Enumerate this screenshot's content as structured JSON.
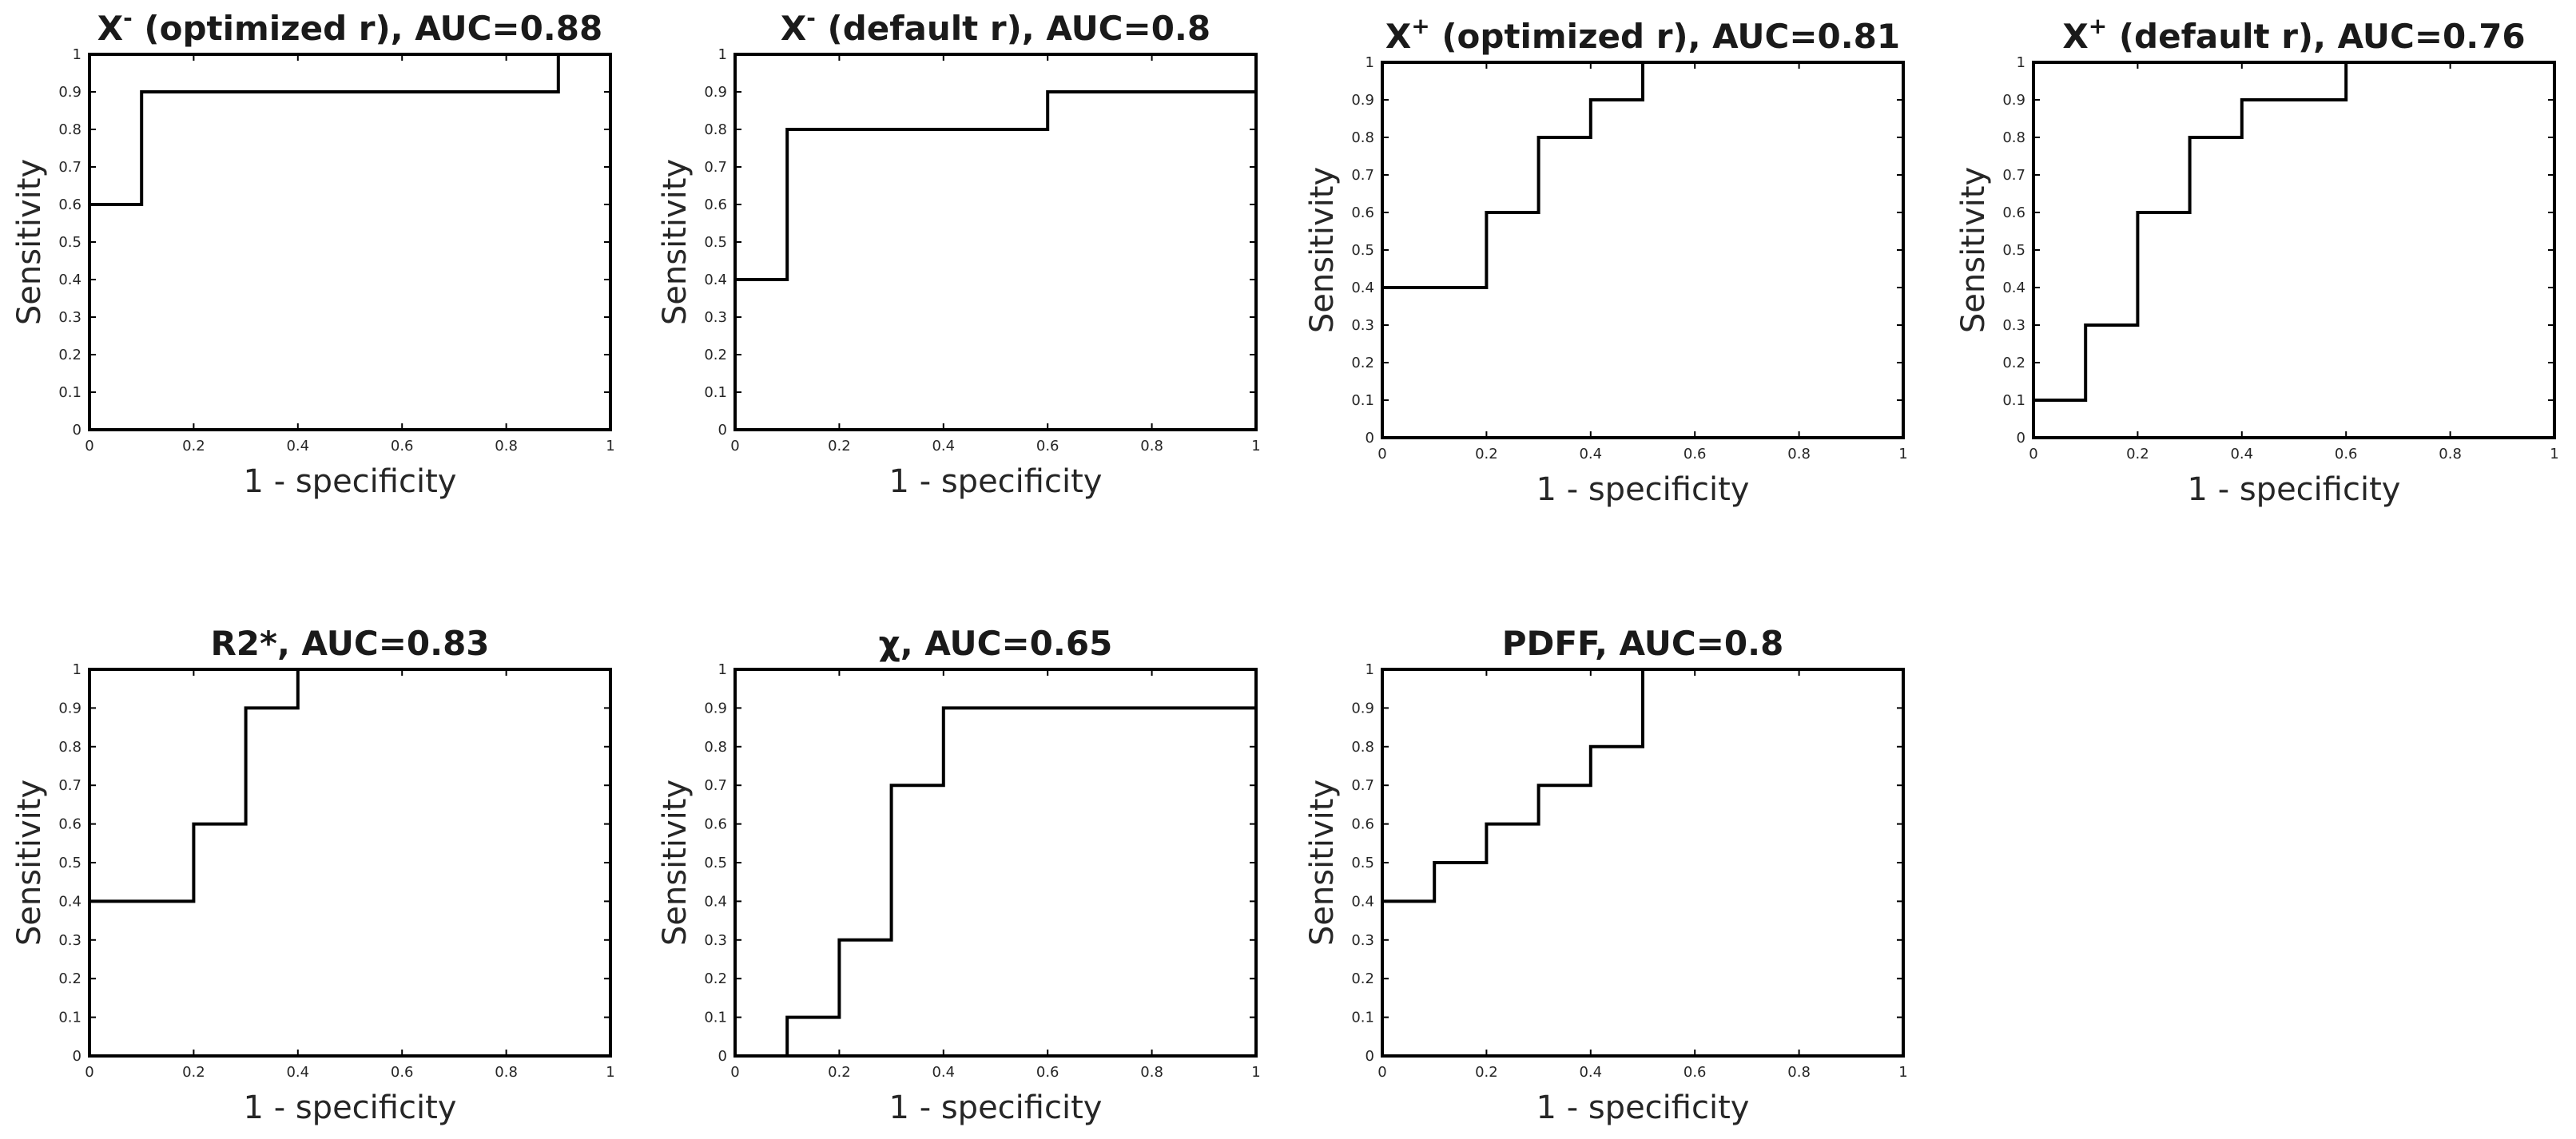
{
  "chart_data": [
    {
      "type": "line",
      "title": "X- (optimized r), AUC=0.88",
      "title_parts": {
        "base": "X",
        "sup": "-",
        "rest": " (optimized r), AUC=0.88"
      },
      "xlabel": "1 - specificity",
      "ylabel": "Sensitivity",
      "xlim": [
        0,
        1
      ],
      "ylim": [
        0,
        1
      ],
      "grid": false,
      "x_ticks": [
        "0",
        "0.2",
        "0.4",
        "0.6",
        "0.8",
        "1"
      ],
      "y_ticks": [
        "0",
        "0.1",
        "0.2",
        "0.3",
        "0.4",
        "0.5",
        "0.6",
        "0.7",
        "0.8",
        "0.9",
        "1"
      ],
      "series": [
        {
          "x": [
            0,
            0,
            0.1,
            0.1,
            0.9,
            0.9,
            1
          ],
          "y": [
            0,
            0.6,
            0.6,
            0.9,
            0.9,
            1,
            1
          ]
        }
      ]
    },
    {
      "type": "line",
      "title": "X- (default r), AUC=0.8",
      "title_parts": {
        "base": "X",
        "sup": "-",
        "rest": " (default r), AUC=0.8"
      },
      "xlabel": "1 - specificity",
      "ylabel": "Sensitivity",
      "xlim": [
        0,
        1
      ],
      "ylim": [
        0,
        1
      ],
      "grid": false,
      "x_ticks": [
        "0",
        "0.2",
        "0.4",
        "0.6",
        "0.8",
        "1"
      ],
      "y_ticks": [
        "0",
        "0.1",
        "0.2",
        "0.3",
        "0.4",
        "0.5",
        "0.6",
        "0.7",
        "0.8",
        "0.9",
        "1"
      ],
      "series": [
        {
          "x": [
            0,
            0,
            0.1,
            0.1,
            0.6,
            0.6,
            1,
            1
          ],
          "y": [
            0,
            0.4,
            0.4,
            0.8,
            0.8,
            0.9,
            0.9,
            1
          ]
        }
      ]
    },
    {
      "type": "line",
      "title": "X+ (optimized r), AUC=0.81",
      "title_parts": {
        "base": "X",
        "sup": "+",
        "rest": " (optimized r), AUC=0.81"
      },
      "xlabel": "1 - specificity",
      "ylabel": "Sensitivity",
      "xlim": [
        0,
        1
      ],
      "ylim": [
        0,
        1
      ],
      "grid": false,
      "x_ticks": [
        "0",
        "0.2",
        "0.4",
        "0.6",
        "0.8",
        "1"
      ],
      "y_ticks": [
        "0",
        "0.1",
        "0.2",
        "0.3",
        "0.4",
        "0.5",
        "0.6",
        "0.7",
        "0.8",
        "0.9",
        "1"
      ],
      "series": [
        {
          "x": [
            0,
            0,
            0.2,
            0.2,
            0.3,
            0.3,
            0.4,
            0.4,
            0.5,
            0.5,
            1
          ],
          "y": [
            0,
            0.4,
            0.4,
            0.6,
            0.6,
            0.8,
            0.8,
            0.9,
            0.9,
            1,
            1
          ]
        }
      ]
    },
    {
      "type": "line",
      "title": "X+ (default r), AUC=0.76",
      "title_parts": {
        "base": "X",
        "sup": "+",
        "rest": " (default r), AUC=0.76"
      },
      "xlabel": "1 - specificity",
      "ylabel": "Sensitivity",
      "xlim": [
        0,
        1
      ],
      "ylim": [
        0,
        1
      ],
      "grid": false,
      "x_ticks": [
        "0",
        "0.2",
        "0.4",
        "0.6",
        "0.8",
        "1"
      ],
      "y_ticks": [
        "0",
        "0.1",
        "0.2",
        "0.3",
        "0.4",
        "0.5",
        "0.6",
        "0.7",
        "0.8",
        "0.9",
        "1"
      ],
      "series": [
        {
          "x": [
            0,
            0,
            0.1,
            0.1,
            0.2,
            0.2,
            0.3,
            0.3,
            0.4,
            0.4,
            0.6,
            0.6,
            1
          ],
          "y": [
            0,
            0.1,
            0.1,
            0.3,
            0.3,
            0.6,
            0.6,
            0.8,
            0.8,
            0.9,
            0.9,
            1,
            1
          ]
        }
      ]
    },
    {
      "type": "line",
      "title": "R2*, AUC=0.83",
      "title_parts": {
        "base": "R2*, AUC=0.83",
        "sup": "",
        "rest": ""
      },
      "xlabel": "1 - specificity",
      "ylabel": "Sensitivity",
      "xlim": [
        0,
        1
      ],
      "ylim": [
        0,
        1
      ],
      "grid": false,
      "x_ticks": [
        "0",
        "0.2",
        "0.4",
        "0.6",
        "0.8",
        "1"
      ],
      "y_ticks": [
        "0",
        "0.1",
        "0.2",
        "0.3",
        "0.4",
        "0.5",
        "0.6",
        "0.7",
        "0.8",
        "0.9",
        "1"
      ],
      "series": [
        {
          "x": [
            0,
            0,
            0.2,
            0.2,
            0.3,
            0.3,
            0.4,
            0.4,
            1
          ],
          "y": [
            0,
            0.4,
            0.4,
            0.6,
            0.6,
            0.9,
            0.9,
            1,
            1
          ]
        }
      ]
    },
    {
      "type": "line",
      "title": "χ, AUC=0.65",
      "title_parts": {
        "base": "χ, AUC=0.65",
        "sup": "",
        "rest": ""
      },
      "xlabel": "1 - specificity",
      "ylabel": "Sensitivity",
      "xlim": [
        0,
        1
      ],
      "ylim": [
        0,
        1
      ],
      "grid": false,
      "x_ticks": [
        "0",
        "0.2",
        "0.4",
        "0.6",
        "0.8",
        "1"
      ],
      "y_ticks": [
        "0",
        "0.1",
        "0.2",
        "0.3",
        "0.4",
        "0.5",
        "0.6",
        "0.7",
        "0.8",
        "0.9",
        "1"
      ],
      "series": [
        {
          "x": [
            0,
            0.1,
            0.1,
            0.2,
            0.2,
            0.3,
            0.3,
            0.4,
            0.4,
            1,
            1
          ],
          "y": [
            0,
            0,
            0.1,
            0.1,
            0.3,
            0.3,
            0.7,
            0.7,
            0.9,
            0.9,
            1
          ]
        }
      ]
    },
    {
      "type": "line",
      "title": "PDFF, AUC=0.8",
      "title_parts": {
        "base": "PDFF, AUC=0.8",
        "sup": "",
        "rest": ""
      },
      "xlabel": "1 - specificity",
      "ylabel": "Sensitivity",
      "xlim": [
        0,
        1
      ],
      "ylim": [
        0,
        1
      ],
      "grid": false,
      "x_ticks": [
        "0",
        "0.2",
        "0.4",
        "0.6",
        "0.8",
        "1"
      ],
      "y_ticks": [
        "0",
        "0.1",
        "0.2",
        "0.3",
        "0.4",
        "0.5",
        "0.6",
        "0.7",
        "0.8",
        "0.9",
        "1"
      ],
      "series": [
        {
          "x": [
            0,
            0,
            0.1,
            0.1,
            0.2,
            0.2,
            0.3,
            0.3,
            0.4,
            0.4,
            0.5,
            0.5,
            1
          ],
          "y": [
            0,
            0.4,
            0.4,
            0.5,
            0.5,
            0.6,
            0.6,
            0.7,
            0.7,
            0.8,
            0.8,
            1,
            1
          ]
        }
      ]
    }
  ]
}
